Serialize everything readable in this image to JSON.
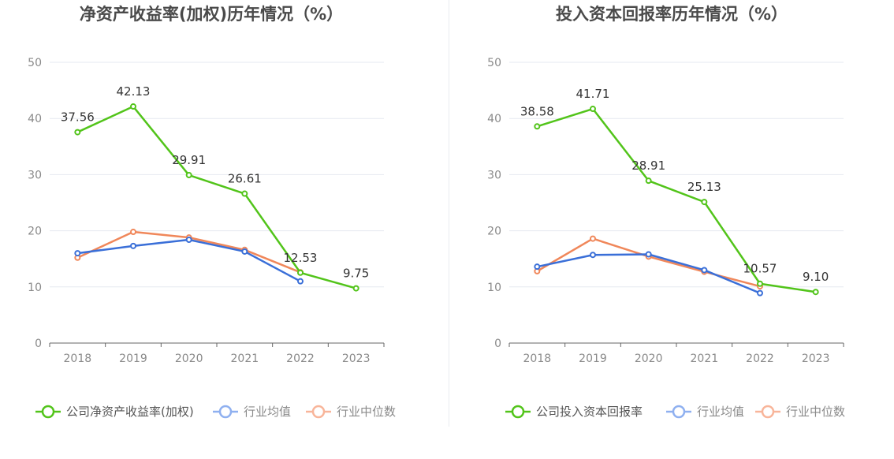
{
  "colors": {
    "company": "#52c41a",
    "industry_avg": "#3a6fd8",
    "industry_median": "#f0875a",
    "legend_avg": "#8fb0f0",
    "legend_median": "#f8b59a",
    "grid": "#e6e9f0",
    "axis": "#666666"
  },
  "chart_data": [
    {
      "type": "line",
      "title": "净资产收益率(加权)历年情况（%）",
      "categories": [
        "2018",
        "2019",
        "2020",
        "2021",
        "2022",
        "2023"
      ],
      "ylim": [
        0,
        50
      ],
      "yticks": [
        "0",
        "10",
        "20",
        "30",
        "40",
        "50"
      ],
      "grid": true,
      "legend_position": "bottom",
      "series": [
        {
          "name": "公司净资产收益率(加权)",
          "values": [
            37.56,
            42.13,
            29.91,
            26.61,
            12.53,
            9.75
          ],
          "labels": [
            "37.56",
            "42.13",
            "29.91",
            "26.61",
            "12.53",
            "9.75"
          ]
        },
        {
          "name": "行业均值",
          "values": [
            16.0,
            17.3,
            18.4,
            16.3,
            11.0,
            null
          ]
        },
        {
          "name": "行业中位数",
          "values": [
            15.2,
            19.8,
            18.8,
            16.6,
            12.6,
            null
          ]
        }
      ]
    },
    {
      "type": "line",
      "title": "投入资本回报率历年情况（%）",
      "categories": [
        "2018",
        "2019",
        "2020",
        "2021",
        "2022",
        "2023"
      ],
      "ylim": [
        0,
        50
      ],
      "yticks": [
        "0",
        "10",
        "20",
        "30",
        "40",
        "50"
      ],
      "grid": true,
      "legend_position": "bottom",
      "series": [
        {
          "name": "公司投入资本回报率",
          "values": [
            38.58,
            41.71,
            28.91,
            25.13,
            10.57,
            9.1
          ],
          "labels": [
            "38.58",
            "41.71",
            "28.91",
            "25.13",
            "10.57",
            "9.10"
          ]
        },
        {
          "name": "行业均值",
          "values": [
            13.6,
            15.7,
            15.8,
            13.0,
            8.9,
            null
          ]
        },
        {
          "name": "行业中位数",
          "values": [
            12.8,
            18.6,
            15.4,
            12.7,
            10.1,
            null
          ]
        }
      ]
    }
  ]
}
